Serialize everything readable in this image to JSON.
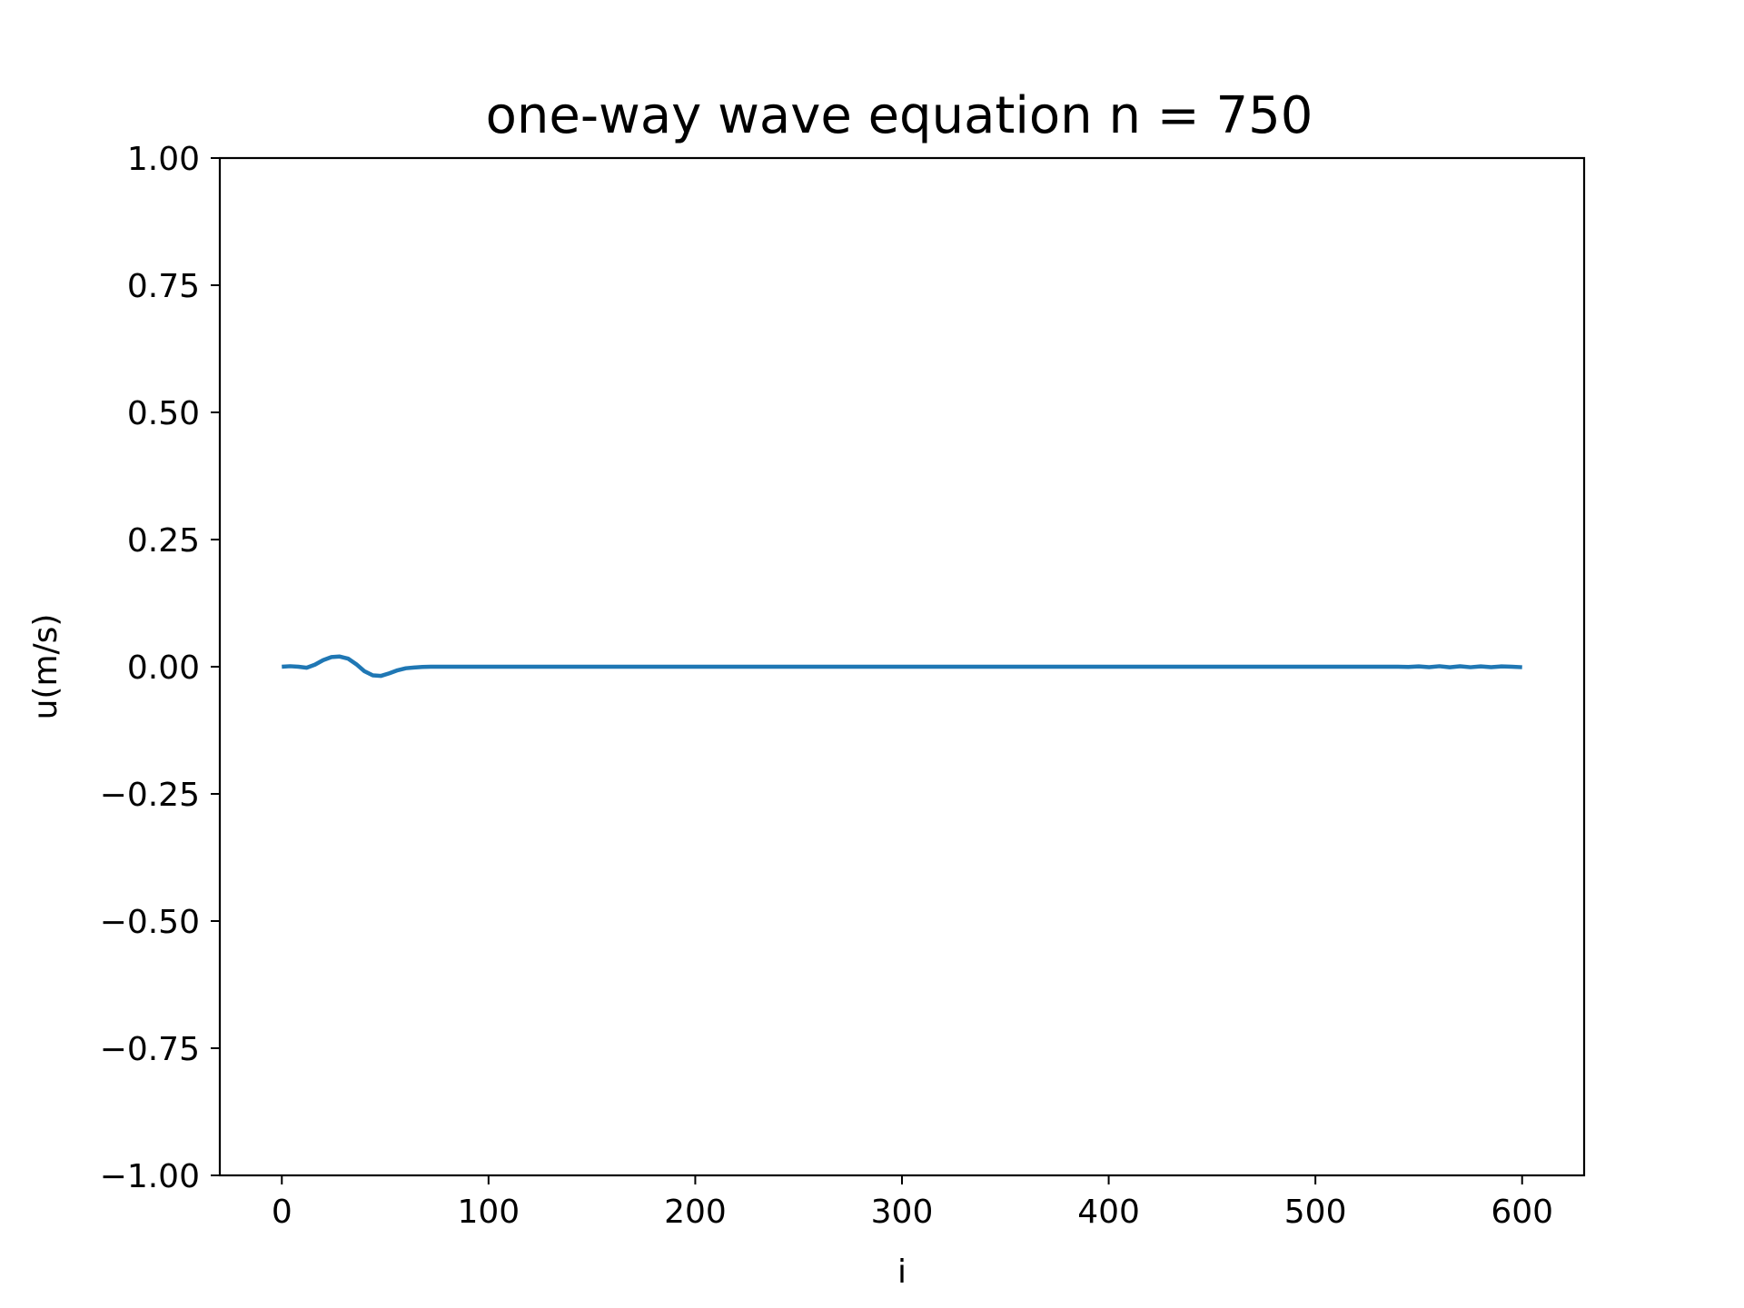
{
  "chart_data": {
    "type": "line",
    "title": "one-way wave equation  n = 750",
    "xlabel": "i",
    "ylabel": "u(m/s)",
    "xlim": [
      -30,
      630
    ],
    "ylim": [
      -1.0,
      1.0
    ],
    "x_ticks": [
      0,
      100,
      200,
      300,
      400,
      500,
      600
    ],
    "x_tick_labels": [
      "0",
      "100",
      "200",
      "300",
      "400",
      "500",
      "600"
    ],
    "y_ticks": [
      1.0,
      0.75,
      0.5,
      0.25,
      0.0,
      -0.25,
      -0.5,
      -0.75,
      -1.0
    ],
    "y_tick_labels": [
      "1.00",
      "0.75",
      "0.50",
      "0.25",
      "0.00",
      "−0.25",
      "−0.50",
      "−0.75",
      "−1.00"
    ],
    "grid": false,
    "series": [
      {
        "color": "#1f77b4",
        "x": [
          0,
          4,
          8,
          12,
          16,
          20,
          24,
          28,
          32,
          36,
          40,
          44,
          48,
          52,
          56,
          60,
          64,
          68,
          72,
          80,
          100,
          150,
          200,
          250,
          300,
          350,
          400,
          450,
          500,
          530,
          540,
          545,
          550,
          555,
          560,
          565,
          570,
          575,
          580,
          585,
          590,
          595,
          600
        ],
        "y": [
          0.0,
          0.001,
          0.0,
          -0.002,
          0.004,
          0.013,
          0.019,
          0.02,
          0.016,
          0.005,
          -0.009,
          -0.017,
          -0.018,
          -0.013,
          -0.007,
          -0.003,
          -0.0015,
          -0.0005,
          0.0,
          0.0,
          0.0,
          0.0,
          0.0,
          0.0,
          0.0,
          0.0,
          0.0,
          0.0,
          0.0,
          0.0,
          0.0,
          -0.0005,
          0.0006,
          -0.0008,
          0.001,
          -0.0012,
          0.0008,
          -0.001,
          0.0007,
          -0.0009,
          0.0006,
          0.0,
          -0.001
        ]
      }
    ]
  }
}
